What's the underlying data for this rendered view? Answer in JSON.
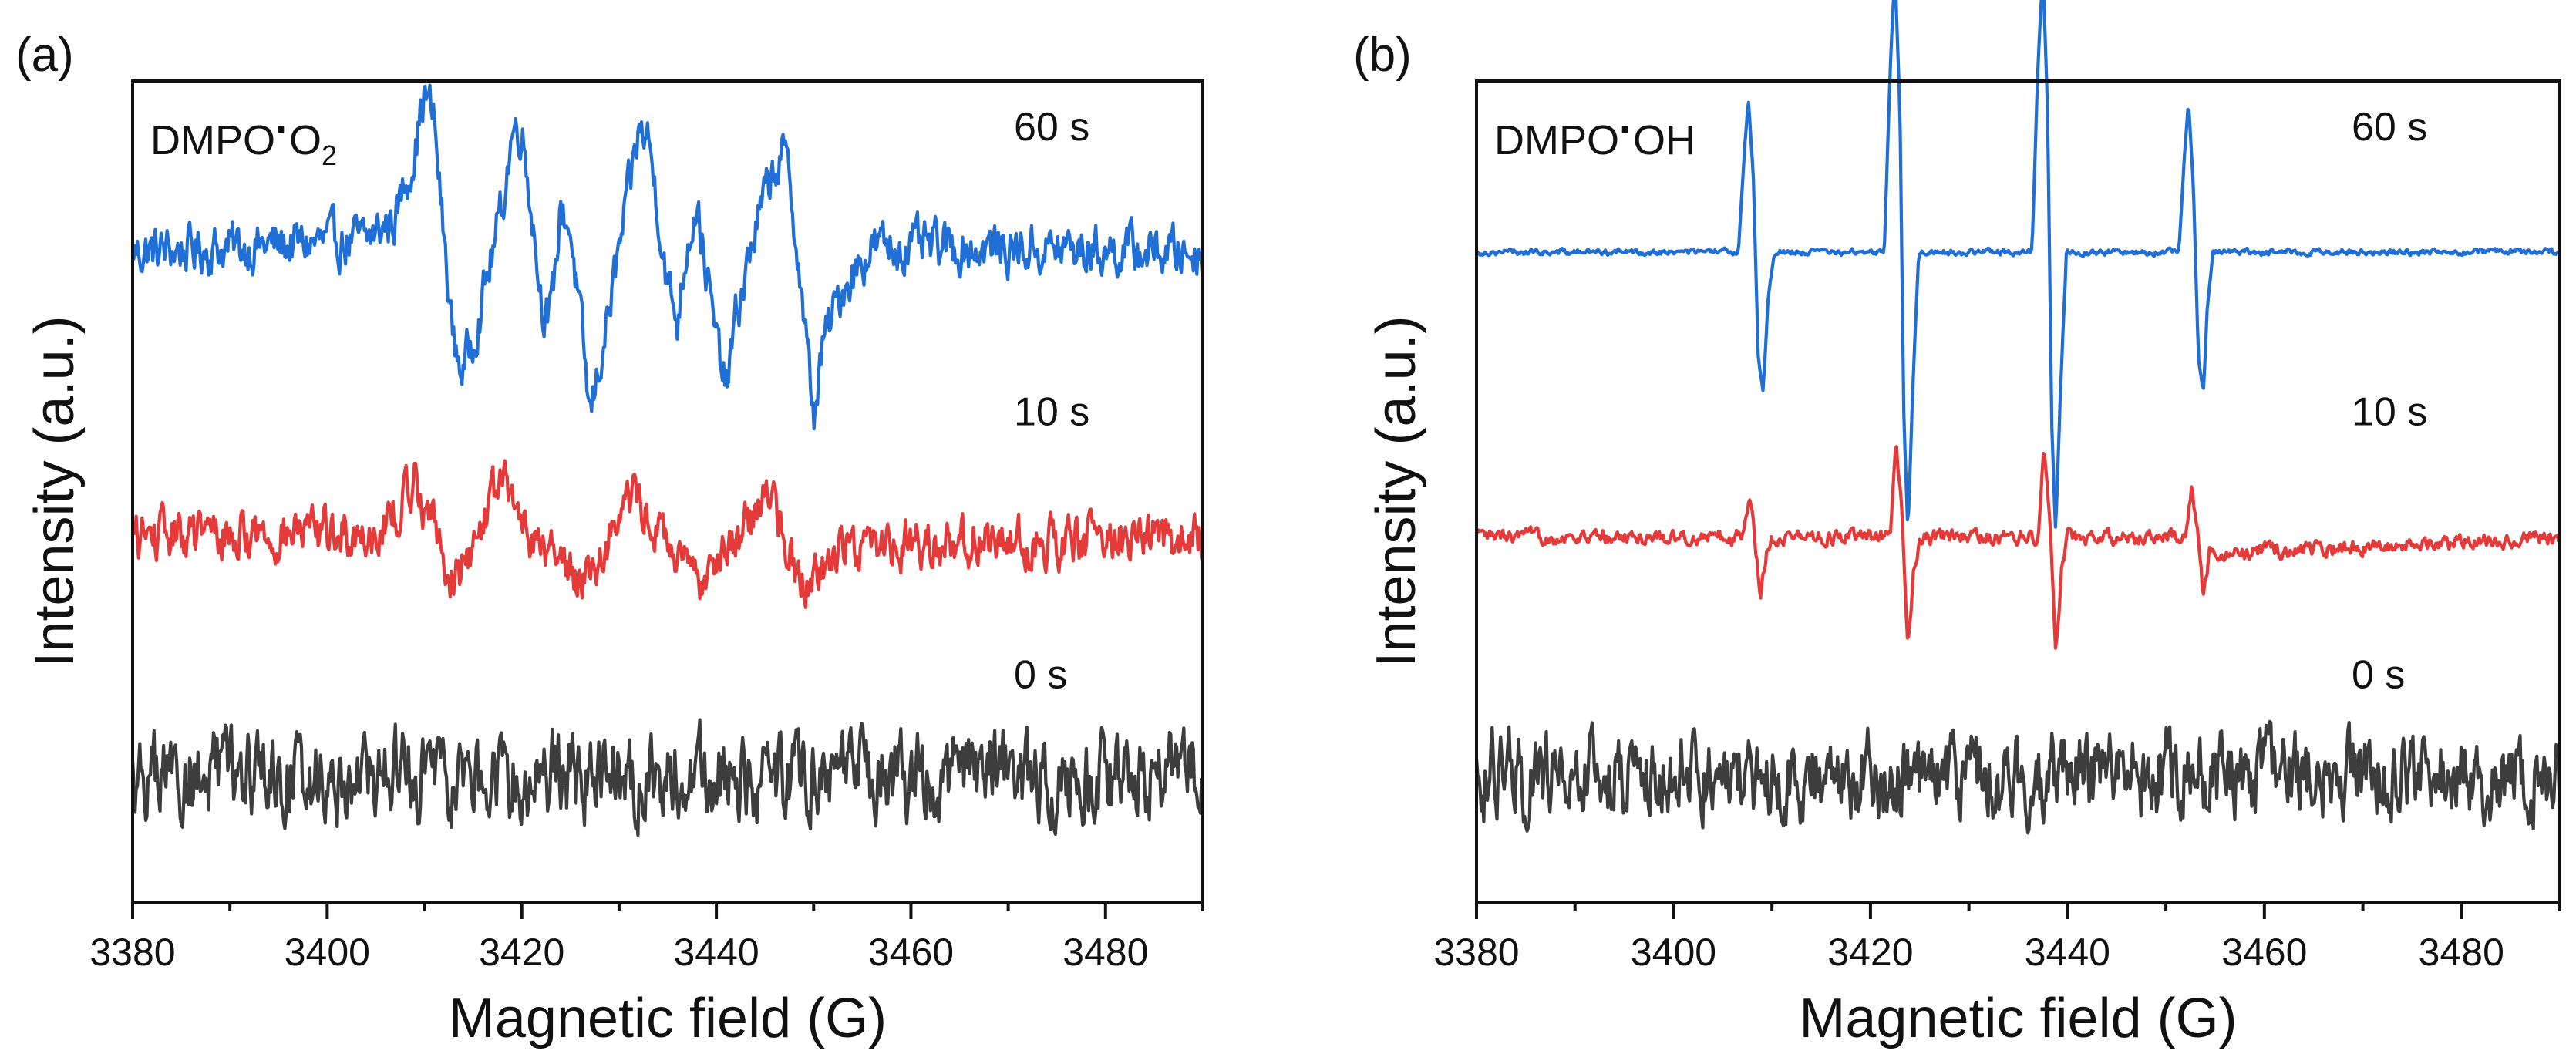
{
  "chart_data": [
    {
      "type": "line",
      "panel_label": "(a)",
      "annotation": {
        "text": "DMPO",
        "dot": "·",
        "species": "O",
        "subscript": "2"
      },
      "xlabel": "Magnetic field (G)",
      "ylabel": "Intensity (a.u.)",
      "xlim": [
        3380,
        3490
      ],
      "x_ticks": [
        3380,
        3400,
        3420,
        3440,
        3460,
        3480
      ],
      "x_tick_labels": [
        "3380",
        "3400",
        "3420",
        "3440",
        "3460",
        "3480"
      ],
      "y_ticks_shown": false,
      "ylim": [
        -1.1,
        6.1
      ],
      "grid": false,
      "series": [
        {
          "name": "60 s",
          "color": "#1f6fd6",
          "offset": 4.6,
          "noise": 0.24,
          "x": [
            3380,
            3404,
            3407,
            3409,
            3410,
            3411,
            3412,
            3413,
            3414,
            3416,
            3418,
            3419,
            3420,
            3421,
            3422,
            3423,
            3424,
            3425,
            3426,
            3427,
            3429,
            3431,
            3432,
            3433,
            3434,
            3435,
            3436,
            3437,
            3438,
            3439,
            3440,
            3441,
            3442,
            3444,
            3446,
            3447,
            3448,
            3449,
            3450,
            3451,
            3453,
            3456,
            3490
          ],
          "y": [
            0,
            0.1,
            0.3,
            0.9,
            1.4,
            1.15,
            0.1,
            -0.8,
            -1.05,
            -0.4,
            0.4,
            1.05,
            1.1,
            0.4,
            -0.4,
            -0.6,
            0.4,
            0.2,
            -0.6,
            -1.45,
            -0.5,
            0.5,
            1.05,
            1.0,
            0.4,
            -0.3,
            -0.6,
            0.1,
            0.45,
            -0.2,
            -0.8,
            -1.2,
            -0.6,
            0.2,
            0.75,
            0.85,
            0.3,
            -0.6,
            -1.45,
            -0.8,
            -0.3,
            0.05,
            0
          ]
        },
        {
          "name": "10 s",
          "color": "#e53a3a",
          "offset": 2.1,
          "noise": 0.24,
          "x": [
            3380,
            3405,
            3407,
            3409,
            3411,
            3413,
            3415,
            3417,
            3418,
            3420,
            3422,
            3424,
            3426,
            3428,
            3430,
            3431,
            3432,
            3434,
            3436,
            3438,
            3440,
            3442,
            3444,
            3445,
            3446,
            3447,
            3448,
            3450,
            3453,
            3490
          ],
          "y": [
            0,
            0.05,
            0.2,
            0.5,
            0.1,
            -0.4,
            -0.1,
            0.4,
            0.45,
            0.2,
            -0.1,
            -0.2,
            -0.35,
            -0.2,
            0.25,
            0.35,
            0.3,
            0.05,
            -0.2,
            -0.45,
            -0.1,
            -0.05,
            0.2,
            0.4,
            0.35,
            0.05,
            -0.3,
            -0.35,
            -0.05,
            0
          ]
        },
        {
          "name": "0 s",
          "color": "#3d3d3d",
          "offset": 0,
          "noise": 0.42,
          "x": [
            3380,
            3490
          ],
          "y": [
            0,
            0
          ]
        }
      ]
    },
    {
      "type": "line",
      "panel_label": "(b)",
      "annotation": {
        "text": "DMPO",
        "dot": "·",
        "species": "OH",
        "subscript": ""
      },
      "xlabel": "Magnetic field (G)",
      "ylabel": "Intensity (a.u.)",
      "xlim": [
        3380,
        3490
      ],
      "x_ticks": [
        3380,
        3400,
        3420,
        3440,
        3460,
        3480
      ],
      "x_tick_labels": [
        "3380",
        "3400",
        "3420",
        "3440",
        "3460",
        "3480"
      ],
      "y_ticks_shown": false,
      "ylim": [
        -1.1,
        6.1
      ],
      "grid": false,
      "series": [
        {
          "name": "60 s",
          "color": "#1f6fd6",
          "offset": 4.6,
          "noise": 0.03,
          "x": [
            3380,
            3406.6,
            3407.2,
            3407.6,
            3408.1,
            3408.6,
            3409.1,
            3409.6,
            3410.2,
            3421.4,
            3422.0,
            3422.5,
            3423.0,
            3423.4,
            3423.8,
            3424.3,
            3424.9,
            3436.4,
            3437.0,
            3437.5,
            3438.0,
            3438.4,
            3438.8,
            3439.3,
            3439.9,
            3451.3,
            3451.9,
            3452.3,
            3452.8,
            3453.3,
            3453.8,
            3454.2,
            3454.8,
            3490
          ],
          "y": [
            0,
            0,
            0.9,
            1.35,
            0.7,
            -0.9,
            -1.25,
            -0.4,
            0,
            0,
            1.6,
            2.5,
            1.2,
            -1.5,
            -2.45,
            -1.2,
            0,
            0,
            1.6,
            2.5,
            1.2,
            -1.5,
            -2.45,
            -1.2,
            0,
            0,
            0.85,
            1.3,
            0.6,
            -0.9,
            -1.25,
            -0.5,
            0,
            0
          ]
        },
        {
          "name": "10 s",
          "color": "#e53a3a",
          "offset": 2.1,
          "noise": 0.07,
          "x": [
            3380,
            3407.0,
            3407.7,
            3408.2,
            3408.8,
            3409.4,
            3410.0,
            3422.0,
            3422.6,
            3423.2,
            3423.8,
            3424.4,
            3425.0,
            3437.0,
            3437.6,
            3438.2,
            3438.8,
            3439.4,
            3440.0,
            3452.0,
            3452.6,
            3453.2,
            3453.8,
            3454.4,
            3490
          ],
          "y": [
            0,
            0,
            0.35,
            0.05,
            -0.5,
            -0.15,
            0,
            0,
            0.8,
            0.2,
            -0.95,
            -0.3,
            0,
            0,
            0.8,
            0.2,
            -0.95,
            -0.3,
            0,
            0,
            0.4,
            0.05,
            -0.55,
            -0.15,
            0
          ]
        },
        {
          "name": "0 s",
          "color": "#3d3d3d",
          "offset": 0,
          "noise": 0.42,
          "x": [
            3380,
            3490
          ],
          "y": [
            0,
            0
          ]
        }
      ]
    }
  ]
}
